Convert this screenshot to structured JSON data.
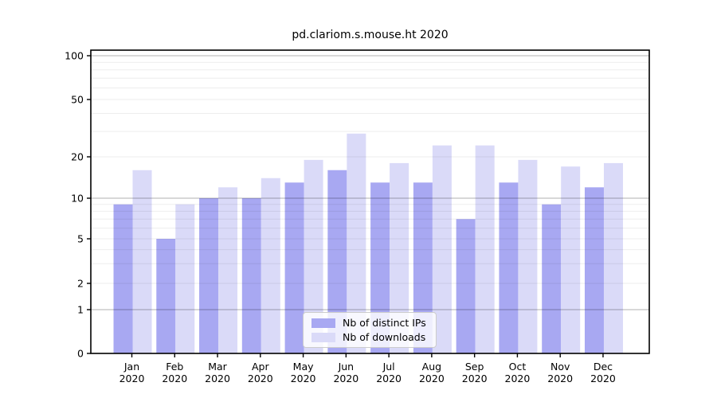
{
  "chart_data": {
    "type": "bar",
    "title": "pd.clariom.s.mouse.ht 2020",
    "categories": [
      "Jan",
      "Feb",
      "Mar",
      "Apr",
      "May",
      "Jun",
      "Jul",
      "Aug",
      "Sep",
      "Oct",
      "Nov",
      "Dec"
    ],
    "category_year": "2020",
    "series": [
      {
        "name": "Nb of distinct IPs",
        "color": "#a8a8f2",
        "values": [
          9,
          5,
          10,
          10,
          13,
          16,
          13,
          13,
          7,
          13,
          9,
          12
        ]
      },
      {
        "name": "Nb of downloads",
        "color": "#dadaf8",
        "values": [
          16,
          9,
          12,
          14,
          19,
          29,
          18,
          24,
          24,
          19,
          17,
          18
        ]
      }
    ],
    "xlabel": "",
    "ylabel": "",
    "y_axis": {
      "scale": "log-like",
      "tick_values": [
        0,
        1,
        2,
        5,
        10,
        20,
        50,
        100
      ],
      "major_gridlines": [
        1,
        10,
        100
      ],
      "minor_gridlines": [
        2,
        3,
        4,
        5,
        6,
        7,
        8,
        9,
        20,
        30,
        40,
        50,
        60,
        70,
        80,
        90
      ],
      "ylim": [
        0,
        130
      ]
    },
    "grid": true,
    "legend_position": "bottom-center"
  }
}
